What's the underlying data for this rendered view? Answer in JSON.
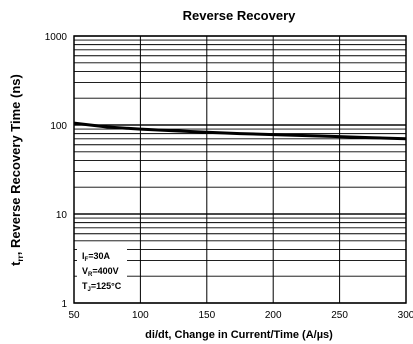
{
  "chart_data": {
    "type": "line",
    "title": "Reverse Recovery",
    "xlabel": "di/dt, Change in Current/Time  (A/µs)",
    "ylabel": {
      "main": "t",
      "sub": "rr",
      "rest": ", Reverse Recovery Time (ns)"
    },
    "xlim": [
      50,
      300
    ],
    "ylim": [
      1,
      1000
    ],
    "yscale": "log",
    "grid": true,
    "x_ticks": [
      "50",
      "100",
      "150",
      "200",
      "250",
      "300"
    ],
    "y_ticks": [
      "1",
      "10",
      "100",
      "1000"
    ],
    "series": [
      {
        "x": [
          50,
          75,
          100,
          125,
          150,
          175,
          200,
          225,
          250,
          275,
          300
        ],
        "y": [
          105,
          95,
          90,
          86,
          83,
          80,
          78,
          76,
          74,
          72,
          70
        ]
      }
    ],
    "annotations": [
      {
        "main": "I",
        "sub": "F",
        "rest": "=30A"
      },
      {
        "main": "V",
        "sub": "R",
        "rest": "=400V"
      },
      {
        "main": "T",
        "sub": "J",
        "rest": "=125°C"
      }
    ]
  }
}
